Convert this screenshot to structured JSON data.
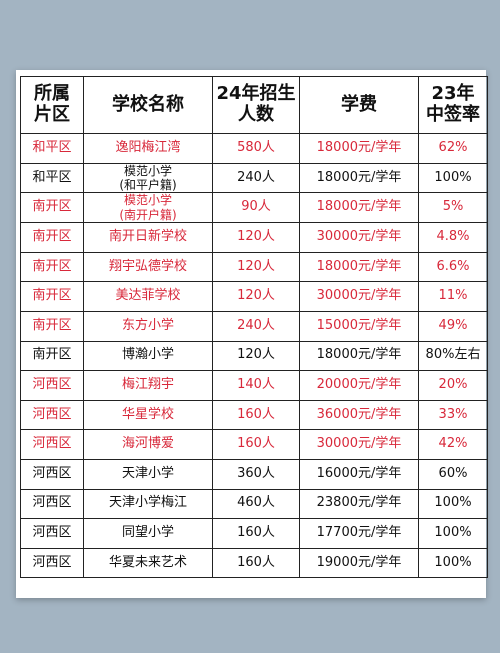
{
  "headers": {
    "district": "所属\n片区",
    "school": "学校名称",
    "enroll": "24年招生\n人数",
    "fee": "学费",
    "rate": "23年\n中签率"
  },
  "rows": [
    {
      "district": "和平区",
      "school": "逸阳梅江湾",
      "enroll": "580人",
      "fee": "18000元/学年",
      "rate": "62%",
      "color": "red"
    },
    {
      "district": "和平区",
      "school": "模范小学\n(和平户籍)",
      "enroll": "240人",
      "fee": "18000元/学年",
      "rate": "100%",
      "color": "black"
    },
    {
      "district": "南开区",
      "school": "模范小学\n(南开户籍)",
      "enroll": "90人",
      "fee": "18000元/学年",
      "rate": "5%",
      "color": "red"
    },
    {
      "district": "南开区",
      "school": "南开日新学校",
      "enroll": "120人",
      "fee": "30000元/学年",
      "rate": "4.8%",
      "color": "red"
    },
    {
      "district": "南开区",
      "school": "翔宇弘德学校",
      "enroll": "120人",
      "fee": "18000元/学年",
      "rate": "6.6%",
      "color": "red"
    },
    {
      "district": "南开区",
      "school": "美达菲学校",
      "enroll": "120人",
      "fee": "30000元/学年",
      "rate": "11%",
      "color": "red"
    },
    {
      "district": "南开区",
      "school": "东方小学",
      "enroll": "240人",
      "fee": "15000元/学年",
      "rate": "49%",
      "color": "red"
    },
    {
      "district": "南开区",
      "school": "博瀚小学",
      "enroll": "120人",
      "fee": "18000元/学年",
      "rate": "80%左右",
      "color": "black"
    },
    {
      "district": "河西区",
      "school": "梅江翔宇",
      "enroll": "140人",
      "fee": "20000元/学年",
      "rate": "20%",
      "color": "red"
    },
    {
      "district": "河西区",
      "school": "华星学校",
      "enroll": "160人",
      "fee": "36000元/学年",
      "rate": "33%",
      "color": "red"
    },
    {
      "district": "河西区",
      "school": "海河博爱",
      "enroll": "160人",
      "fee": "30000元/学年",
      "rate": "42%",
      "color": "red"
    },
    {
      "district": "河西区",
      "school": "天津小学",
      "enroll": "360人",
      "fee": "16000元/学年",
      "rate": "60%",
      "color": "black"
    },
    {
      "district": "河西区",
      "school": "天津小学梅江",
      "enroll": "460人",
      "fee": "23800元/学年",
      "rate": "100%",
      "color": "black"
    },
    {
      "district": "河西区",
      "school": "同望小学",
      "enroll": "160人",
      "fee": "17700元/学年",
      "rate": "100%",
      "color": "black"
    },
    {
      "district": "河西区",
      "school": "华夏未来艺术",
      "enroll": "160人",
      "fee": "19000元/学年",
      "rate": "100%",
      "color": "black"
    }
  ]
}
